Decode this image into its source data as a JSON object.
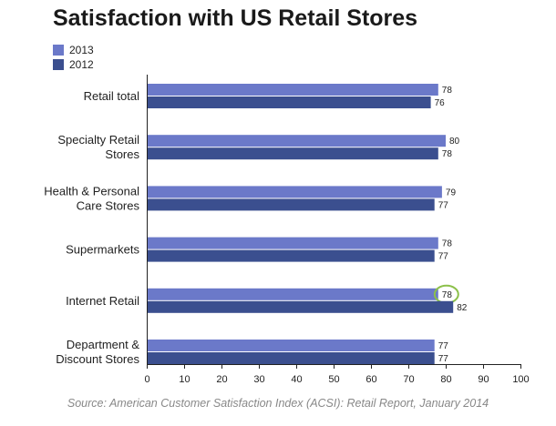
{
  "chart_data": {
    "type": "bar",
    "orientation": "horizontal",
    "title": "Satisfaction with US Retail Stores",
    "categories": [
      [
        "Retail total"
      ],
      [
        "Specialty Retail",
        "Stores"
      ],
      [
        "Health & Personal",
        "Care Stores"
      ],
      [
        "Supermarkets"
      ],
      [
        "Internet Retail"
      ],
      [
        "Department &",
        "Discount Stores"
      ]
    ],
    "series": [
      {
        "name": "2013",
        "color": "#6b79c9",
        "values": [
          78,
          80,
          79,
          78,
          78,
          77
        ]
      },
      {
        "name": "2012",
        "color": "#3b4f8f",
        "values": [
          76,
          78,
          77,
          77,
          82,
          77
        ]
      }
    ],
    "xlim": [
      0,
      100
    ],
    "xticks": [
      "0",
      "10",
      "20",
      "30",
      "40",
      "50",
      "60",
      "70",
      "80",
      "90",
      "100"
    ],
    "highlight": {
      "series": "2013",
      "category": "Internet Retail",
      "color": "#8cc04a"
    },
    "grid": false,
    "legend": "top-left",
    "source": "Source: American Customer Satisfaction Index (ACSI): Retail Report, January 2014"
  }
}
